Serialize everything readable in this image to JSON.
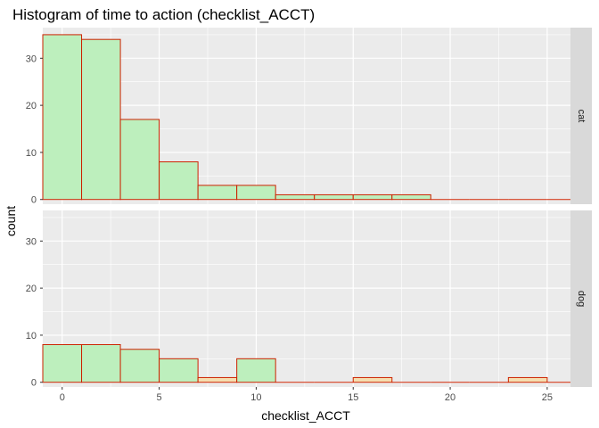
{
  "chart_data": {
    "type": "bar",
    "title": "Histogram of time to action (checklist_ACCT)",
    "xlabel": "checklist_ACCT",
    "ylabel": "count",
    "xlim": [
      -1,
      26.2
    ],
    "ylim": [
      -1,
      36.5
    ],
    "x_ticks": [
      0,
      5,
      10,
      15,
      20,
      25
    ],
    "y_ticks": [
      0,
      10,
      20,
      30
    ],
    "binwidth": 2,
    "grid": true,
    "colors": {
      "panel_bg": "#EBEBEB",
      "grid": "#FFFFFF",
      "strip_bg": "#D9D9D9",
      "bar_stroke": "#CC2200",
      "bar_fill_green": "#BDEFBD",
      "bar_fill_orange": "#F5DEB0"
    },
    "panels": [
      {
        "label": "cat",
        "bins": [
          {
            "x0": -1,
            "x1": 1,
            "count": 35,
            "fill": "green"
          },
          {
            "x0": 1,
            "x1": 3,
            "count": 34,
            "fill": "green"
          },
          {
            "x0": 3,
            "x1": 5,
            "count": 17,
            "fill": "green"
          },
          {
            "x0": 5,
            "x1": 7,
            "count": 8,
            "fill": "green"
          },
          {
            "x0": 7,
            "x1": 9,
            "count": 3,
            "fill": "green"
          },
          {
            "x0": 9,
            "x1": 11,
            "count": 3,
            "fill": "green"
          },
          {
            "x0": 11,
            "x1": 13,
            "count": 1,
            "fill": "green"
          },
          {
            "x0": 13,
            "x1": 15,
            "count": 1,
            "fill": "green"
          },
          {
            "x0": 15,
            "x1": 17,
            "count": 1,
            "fill": "green"
          },
          {
            "x0": 17,
            "x1": 19,
            "count": 1,
            "fill": "green"
          },
          {
            "x0": 19,
            "x1": 21,
            "count": 0,
            "fill": "green"
          },
          {
            "x0": 21,
            "x1": 23,
            "count": 0,
            "fill": "green"
          },
          {
            "x0": 23,
            "x1": 25,
            "count": 0,
            "fill": "green"
          },
          {
            "x0": 25,
            "x1": 26.2,
            "count": 0,
            "fill": "green"
          }
        ]
      },
      {
        "label": "dog",
        "bins": [
          {
            "x0": -1,
            "x1": 1,
            "count": 8,
            "fill": "green"
          },
          {
            "x0": 1,
            "x1": 3,
            "count": 8,
            "fill": "green"
          },
          {
            "x0": 3,
            "x1": 5,
            "count": 7,
            "fill": "green"
          },
          {
            "x0": 5,
            "x1": 7,
            "count": 5,
            "fill": "green"
          },
          {
            "x0": 7,
            "x1": 9,
            "count": 1,
            "fill": "orange"
          },
          {
            "x0": 9,
            "x1": 11,
            "count": 5,
            "fill": "green"
          },
          {
            "x0": 11,
            "x1": 13,
            "count": 0,
            "fill": "green"
          },
          {
            "x0": 13,
            "x1": 15,
            "count": 0,
            "fill": "green"
          },
          {
            "x0": 15,
            "x1": 17,
            "count": 1,
            "fill": "orange"
          },
          {
            "x0": 17,
            "x1": 19,
            "count": 0,
            "fill": "green"
          },
          {
            "x0": 19,
            "x1": 21,
            "count": 0,
            "fill": "green"
          },
          {
            "x0": 21,
            "x1": 23,
            "count": 0,
            "fill": "green"
          },
          {
            "x0": 23,
            "x1": 25,
            "count": 1,
            "fill": "orange"
          },
          {
            "x0": 25,
            "x1": 26.2,
            "count": 0,
            "fill": "green"
          }
        ]
      }
    ]
  }
}
